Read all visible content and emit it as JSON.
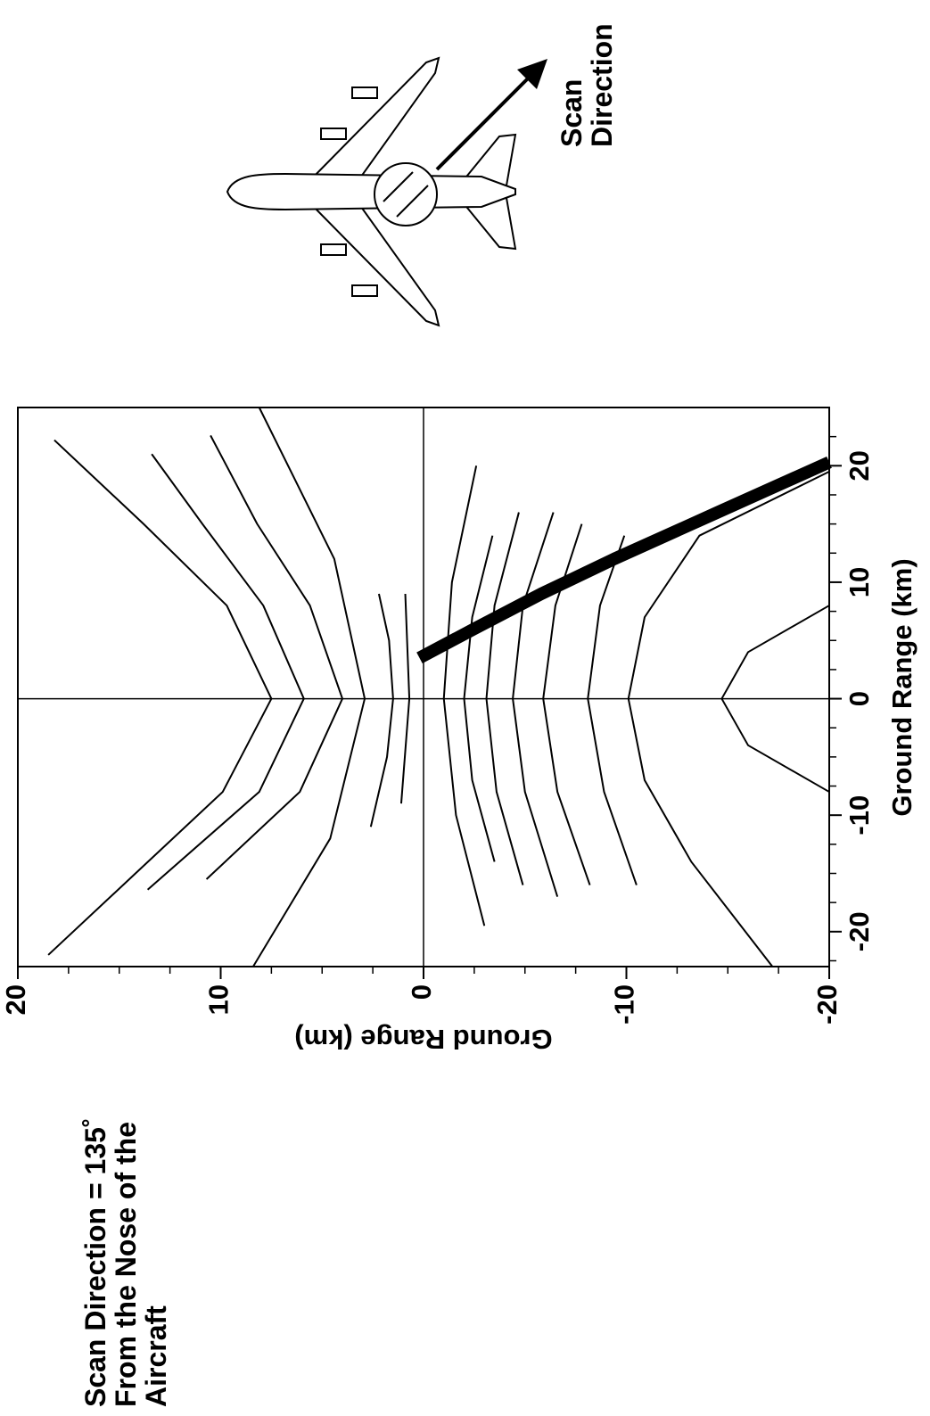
{
  "chart_data": {
    "type": "line",
    "annotation": [
      "Scan Direction = 135˚",
      "From the Nose of the",
      "Aircraft"
    ],
    "scan_label": [
      "Scan",
      "Direction"
    ],
    "x_label": "Ground Range (km)",
    "y_label": "Ground Range (km)",
    "xlim": [
      -23,
      25
    ],
    "ylim": [
      -20,
      20
    ],
    "xticks": [
      -20,
      -10,
      0,
      10,
      20
    ],
    "yticks": [
      20,
      10,
      0,
      -10,
      -20
    ],
    "xminor_ticks": [
      -22.5,
      -17.5,
      -15,
      -12.5,
      -7.5,
      -5,
      -2.5,
      2.5,
      5,
      7.5,
      12.5,
      15,
      17.5,
      22.5
    ],
    "yminor_ticks": [
      17.5,
      15,
      12.5,
      7.5,
      5,
      2.5,
      -2.5,
      -5,
      -7.5,
      -12.5,
      -15,
      -17.5
    ],
    "zero_lines": true,
    "series": [
      {
        "color": "#000000",
        "line_width": 2,
        "x": [
          -22,
          -15,
          -8,
          0,
          8,
          15,
          22.2
        ],
        "values": [
          18.5,
          14.2,
          9.9,
          7.5,
          9.7,
          13.8,
          18.2
        ]
      },
      {
        "color": "#000000",
        "line_width": 2,
        "x": [
          -16.4,
          -8,
          0,
          8,
          15,
          21
        ],
        "values": [
          13.6,
          8.1,
          5.9,
          7.9,
          10.9,
          13.4
        ]
      },
      {
        "color": "#000000",
        "line_width": 2,
        "x": [
          -15.5,
          -8,
          0,
          8,
          15,
          22.6
        ],
        "values": [
          10.7,
          6.1,
          4.0,
          5.6,
          8.2,
          10.5
        ]
      },
      {
        "color": "#000000",
        "line_width": 2,
        "x": [
          -23,
          -12,
          0,
          12,
          25
        ],
        "values": [
          8.4,
          4.6,
          2.9,
          4.4,
          8.1
        ]
      },
      {
        "color": "#000000",
        "line_width": 2,
        "x": [
          -11,
          -5,
          0,
          5,
          9
        ],
        "values": [
          2.6,
          1.8,
          1.5,
          1.7,
          2.2
        ]
      },
      {
        "color": "#000000",
        "line_width": 2,
        "x": [
          -9,
          0,
          9
        ],
        "values": [
          1.1,
          0.7,
          0.9
        ]
      },
      {
        "color": "#000000",
        "line_width": 2,
        "x": [
          -19.5,
          -10,
          0,
          10,
          20
        ],
        "values": [
          -3.0,
          -1.6,
          -1.0,
          -1.4,
          -2.6
        ]
      },
      {
        "color": "#000000",
        "line_width": 2,
        "x": [
          -14,
          -7,
          0,
          7,
          14
        ],
        "values": [
          -3.5,
          -2.4,
          -2.0,
          -2.4,
          -3.4
        ]
      },
      {
        "color": "#000000",
        "line_width": 2,
        "x": [
          -16,
          -8,
          0,
          8,
          16
        ],
        "values": [
          -4.9,
          -3.6,
          -3.1,
          -3.5,
          -4.7
        ]
      },
      {
        "color": "#000000",
        "line_width": 2,
        "x": [
          -17,
          -8,
          0,
          8,
          16
        ],
        "values": [
          -6.6,
          -5.0,
          -4.4,
          -4.9,
          -6.4
        ]
      },
      {
        "color": "#000000",
        "line_width": 2,
        "x": [
          -16,
          -8,
          0,
          8,
          15
        ],
        "values": [
          -8.2,
          -6.6,
          -5.9,
          -6.5,
          -7.8
        ]
      },
      {
        "color": "#000000",
        "line_width": 2,
        "x": [
          -16,
          -8,
          0,
          8,
          14
        ],
        "values": [
          -10.5,
          -8.9,
          -8.1,
          -8.7,
          -9.9
        ]
      },
      {
        "color": "#000000",
        "line_width": 2,
        "x": [
          -23,
          -14,
          -7,
          0,
          7,
          14,
          19.5
        ],
        "values": [
          -17.2,
          -13.2,
          -10.9,
          -10.1,
          -10.9,
          -13.6,
          -20
        ]
      },
      {
        "color": "#000000",
        "line_width": 2,
        "x": [
          -8,
          -4,
          0,
          4,
          8
        ],
        "values": [
          -20,
          -16,
          -14.7,
          -16,
          -20
        ]
      },
      {
        "color": "#000000",
        "line_width": 14,
        "x": [
          3.5,
          6,
          9,
          12,
          16,
          20.3
        ],
        "values": [
          0.2,
          -2.5,
          -5.8,
          -9.4,
          -14.5,
          -20
        ]
      }
    ]
  }
}
